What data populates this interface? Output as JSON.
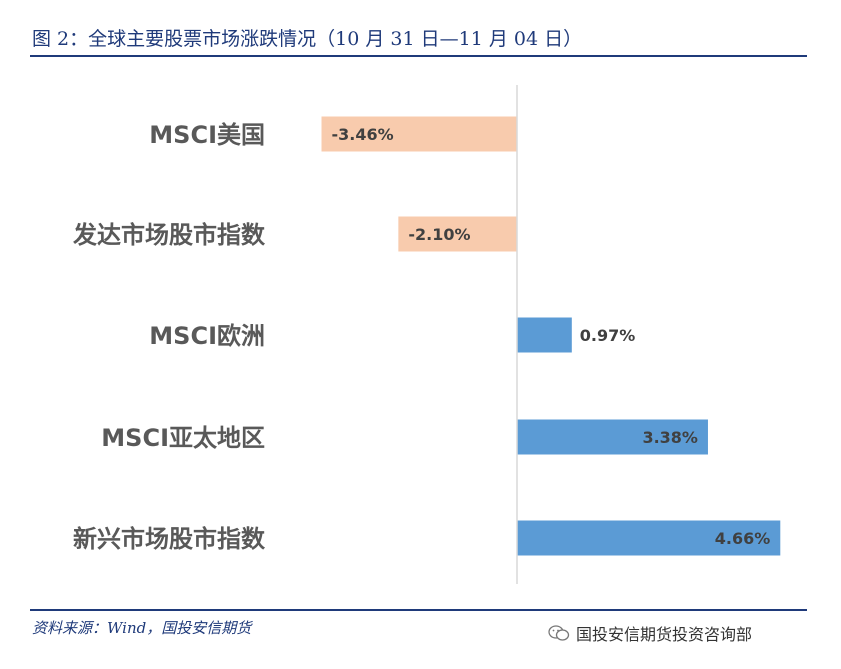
{
  "title": "图 2：全球主要股票市场涨跌情况（10 月 31 日—11 月 04 日）",
  "source": "资料来源：Wind，国投安信期货",
  "watermark": "国投安信期货投资咨询部",
  "colors": {
    "negative": "#f8cbad",
    "positive": "#5b9bd5",
    "rule": "#1f3a7a",
    "axis": "#d9d9d9"
  },
  "chart_data": {
    "type": "bar",
    "orientation": "horizontal",
    "categories": [
      "MSCI美国",
      "发达市场股市指数",
      "MSCI欧洲",
      "MSCI亚太地区",
      "新兴市场股市指数"
    ],
    "values": [
      -3.46,
      -2.1,
      0.97,
      3.38,
      4.66
    ],
    "value_labels": [
      "-3.46%",
      "-2.10%",
      "0.97%",
      "3.38%",
      "4.66%"
    ],
    "unit": "%",
    "grid": false,
    "legend": "none"
  }
}
